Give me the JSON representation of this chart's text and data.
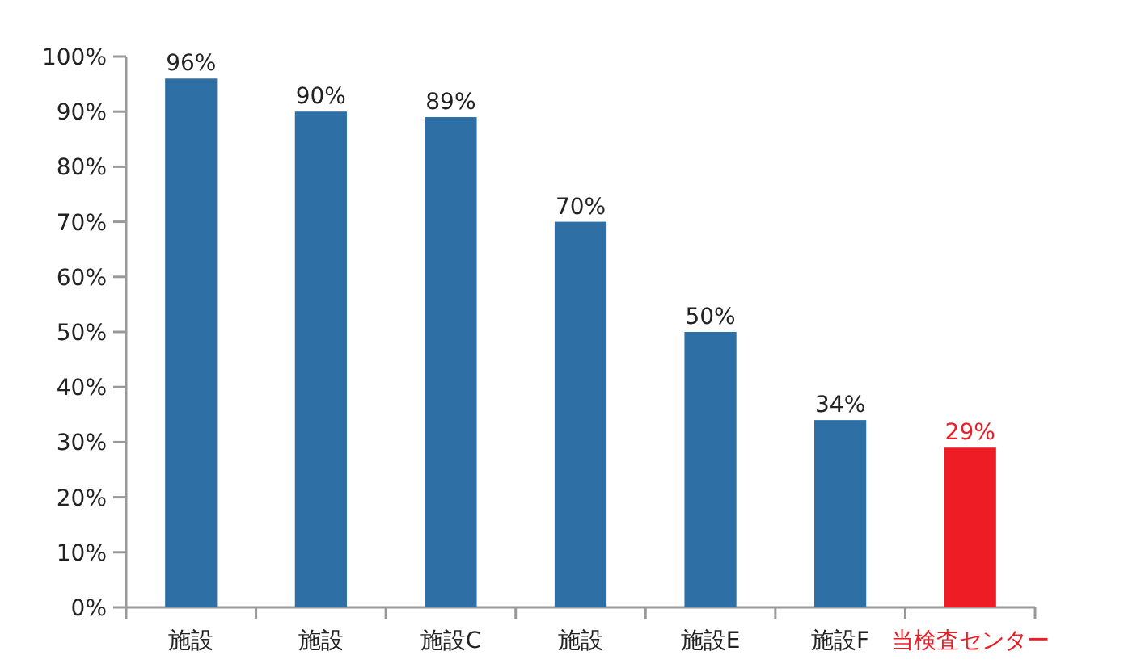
{
  "chart_data": {
    "type": "bar",
    "categories": [
      "施設",
      "施設",
      "施設C",
      "施設",
      "施設E",
      "施設F",
      "当検査センター"
    ],
    "values": [
      96,
      90,
      89,
      70,
      50,
      34,
      29
    ],
    "colors": [
      "#2e6fa6",
      "#2e6fa6",
      "#2e6fa6",
      "#2e6fa6",
      "#2e6fa6",
      "#2e6fa6",
      "#ee1c25"
    ],
    "ylim": [
      0,
      100
    ],
    "yticks": [
      {
        "value": 0,
        "label": "0%"
      },
      {
        "value": 10,
        "label": "10%"
      },
      {
        "value": 20,
        "label": "20%"
      },
      {
        "value": 30,
        "label": "30%"
      },
      {
        "value": 40,
        "label": "40%"
      },
      {
        "value": 50,
        "label": "50%"
      },
      {
        "value": 60,
        "label": "60%"
      },
      {
        "value": 70,
        "label": "70%"
      },
      {
        "value": 80,
        "label": "80%"
      },
      {
        "value": 90,
        "label": "90%"
      },
      {
        "value": 100,
        "label": "100%"
      }
    ],
    "value_labels": [
      "96%",
      "90%",
      "89%",
      "70%",
      "50%",
      "34%",
      "29%"
    ],
    "grid": false
  }
}
